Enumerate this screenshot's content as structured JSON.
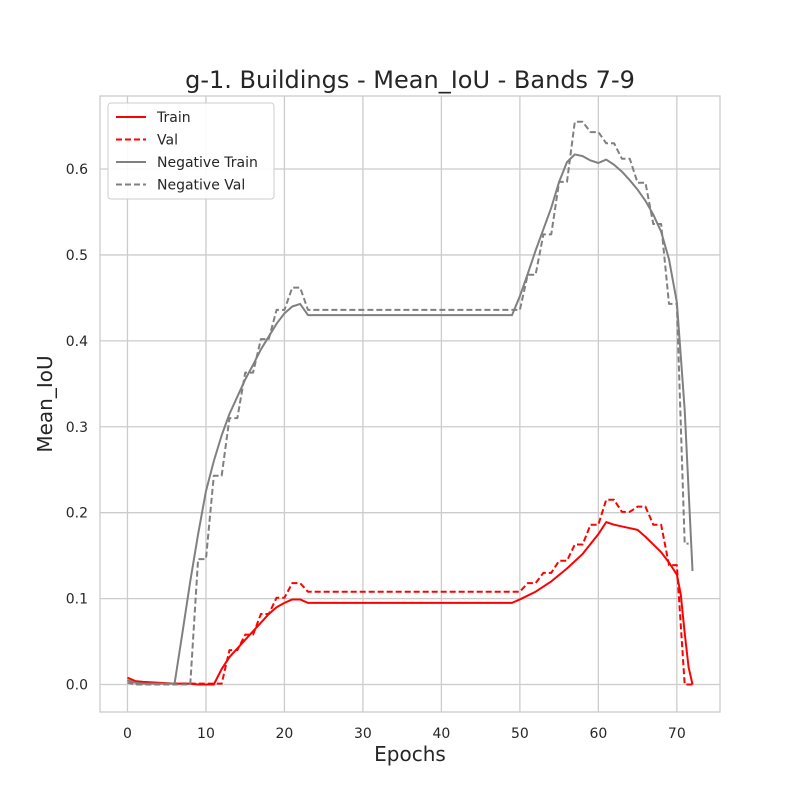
{
  "chart_data": {
    "type": "line",
    "title": "g-1. Buildings - Mean_IoU - Bands 7-9",
    "xlabel": "Epochs",
    "ylabel": "Mean_IoU",
    "xlim": [
      -3.5,
      75.5
    ],
    "ylim": [
      -0.032,
      0.685
    ],
    "xticks": [
      0,
      10,
      20,
      30,
      40,
      50,
      60,
      70
    ],
    "yticks": [
      0.0,
      0.1,
      0.2,
      0.3,
      0.4,
      0.5,
      0.6
    ],
    "ytick_labels": [
      "0.0",
      "0.1",
      "0.2",
      "0.3",
      "0.4",
      "0.5",
      "0.6"
    ],
    "grid": true,
    "legend_position": "top-left",
    "series": [
      {
        "name": "Train",
        "color": "#ff0000",
        "style": "solid",
        "points": [
          [
            0,
            0.008
          ],
          [
            1,
            0.004
          ],
          [
            2,
            0.003
          ],
          [
            4,
            0.002
          ],
          [
            6,
            0.001
          ],
          [
            8,
            0.001
          ],
          [
            9,
            0.0
          ],
          [
            10,
            0.0
          ],
          [
            11,
            0.0
          ],
          [
            12,
            0.018
          ],
          [
            13,
            0.032
          ],
          [
            14,
            0.042
          ],
          [
            15,
            0.052
          ],
          [
            16,
            0.062
          ],
          [
            17,
            0.072
          ],
          [
            18,
            0.082
          ],
          [
            19,
            0.09
          ],
          [
            20,
            0.095
          ],
          [
            21,
            0.099
          ],
          [
            22,
            0.099
          ],
          [
            23,
            0.095
          ],
          [
            30,
            0.095
          ],
          [
            40,
            0.095
          ],
          [
            49,
            0.095
          ],
          [
            50,
            0.099
          ],
          [
            52,
            0.108
          ],
          [
            54,
            0.12
          ],
          [
            56,
            0.135
          ],
          [
            58,
            0.152
          ],
          [
            60,
            0.175
          ],
          [
            61,
            0.189
          ],
          [
            62,
            0.186
          ],
          [
            63,
            0.184
          ],
          [
            65,
            0.18
          ],
          [
            66,
            0.172
          ],
          [
            67,
            0.163
          ],
          [
            68,
            0.154
          ],
          [
            69,
            0.142
          ],
          [
            70,
            0.128
          ],
          [
            70.5,
            0.105
          ],
          [
            71,
            0.06
          ],
          [
            71.5,
            0.02
          ],
          [
            72,
            0.0
          ]
        ]
      },
      {
        "name": "Val",
        "color": "#ff0000",
        "style": "dashed",
        "points": [
          [
            0,
            0.005
          ],
          [
            1,
            0.001
          ],
          [
            6,
            0.001
          ],
          [
            8,
            0.001
          ],
          [
            9,
            0.001
          ],
          [
            11,
            0.001
          ],
          [
            12,
            0.001
          ],
          [
            13,
            0.04
          ],
          [
            14,
            0.04
          ],
          [
            15,
            0.058
          ],
          [
            16,
            0.058
          ],
          [
            17,
            0.082
          ],
          [
            18,
            0.082
          ],
          [
            19,
            0.101
          ],
          [
            20,
            0.101
          ],
          [
            21,
            0.118
          ],
          [
            22,
            0.118
          ],
          [
            23,
            0.108
          ],
          [
            30,
            0.108
          ],
          [
            40,
            0.108
          ],
          [
            50,
            0.108
          ],
          [
            51,
            0.118
          ],
          [
            52,
            0.118
          ],
          [
            53,
            0.13
          ],
          [
            54,
            0.13
          ],
          [
            55,
            0.144
          ],
          [
            56,
            0.144
          ],
          [
            57,
            0.163
          ],
          [
            58,
            0.163
          ],
          [
            59,
            0.186
          ],
          [
            60,
            0.186
          ],
          [
            61,
            0.215
          ],
          [
            62,
            0.215
          ],
          [
            63,
            0.201
          ],
          [
            64,
            0.201
          ],
          [
            65,
            0.207
          ],
          [
            66,
            0.207
          ],
          [
            67,
            0.186
          ],
          [
            68,
            0.186
          ],
          [
            69,
            0.139
          ],
          [
            70,
            0.139
          ],
          [
            71,
            0.0
          ],
          [
            72,
            0.0
          ]
        ]
      },
      {
        "name": "Negative Train",
        "color": "#808080",
        "style": "solid",
        "points": [
          [
            0,
            0.005
          ],
          [
            1,
            0.002
          ],
          [
            2,
            0.001
          ],
          [
            4,
            0.001
          ],
          [
            6,
            0.001
          ],
          [
            7,
            0.06
          ],
          [
            8,
            0.12
          ],
          [
            9,
            0.175
          ],
          [
            10,
            0.225
          ],
          [
            11,
            0.26
          ],
          [
            12,
            0.29
          ],
          [
            13,
            0.315
          ],
          [
            14,
            0.335
          ],
          [
            15,
            0.355
          ],
          [
            16,
            0.372
          ],
          [
            17,
            0.39
          ],
          [
            18,
            0.405
          ],
          [
            19,
            0.42
          ],
          [
            20,
            0.432
          ],
          [
            21,
            0.44
          ],
          [
            22,
            0.443
          ],
          [
            23,
            0.43
          ],
          [
            30,
            0.43
          ],
          [
            40,
            0.43
          ],
          [
            49,
            0.43
          ],
          [
            50,
            0.452
          ],
          [
            51,
            0.478
          ],
          [
            52,
            0.505
          ],
          [
            53,
            0.53
          ],
          [
            54,
            0.555
          ],
          [
            55,
            0.585
          ],
          [
            56,
            0.608
          ],
          [
            57,
            0.617
          ],
          [
            58,
            0.615
          ],
          [
            59,
            0.61
          ],
          [
            60,
            0.607
          ],
          [
            61,
            0.611
          ],
          [
            62,
            0.605
          ],
          [
            63,
            0.597
          ],
          [
            64,
            0.587
          ],
          [
            65,
            0.576
          ],
          [
            66,
            0.563
          ],
          [
            67,
            0.547
          ],
          [
            68,
            0.527
          ],
          [
            69,
            0.495
          ],
          [
            70,
            0.445
          ],
          [
            71,
            0.32
          ],
          [
            72,
            0.132
          ]
        ]
      },
      {
        "name": "Negative Val",
        "color": "#808080",
        "style": "dashed",
        "points": [
          [
            0,
            0.002
          ],
          [
            1,
            0.0
          ],
          [
            6,
            0.0
          ],
          [
            8,
            0.0
          ],
          [
            9,
            0.146
          ],
          [
            10,
            0.146
          ],
          [
            11,
            0.243
          ],
          [
            12,
            0.243
          ],
          [
            13,
            0.31
          ],
          [
            14,
            0.31
          ],
          [
            15,
            0.363
          ],
          [
            16,
            0.363
          ],
          [
            17,
            0.402
          ],
          [
            18,
            0.402
          ],
          [
            19,
            0.436
          ],
          [
            20,
            0.436
          ],
          [
            21,
            0.462
          ],
          [
            22,
            0.462
          ],
          [
            23,
            0.436
          ],
          [
            30,
            0.436
          ],
          [
            40,
            0.436
          ],
          [
            50,
            0.436
          ],
          [
            51,
            0.477
          ],
          [
            52,
            0.477
          ],
          [
            53,
            0.524
          ],
          [
            54,
            0.524
          ],
          [
            55,
            0.585
          ],
          [
            56,
            0.585
          ],
          [
            57,
            0.655
          ],
          [
            58,
            0.655
          ],
          [
            59,
            0.643
          ],
          [
            60,
            0.643
          ],
          [
            61,
            0.63
          ],
          [
            62,
            0.63
          ],
          [
            63,
            0.612
          ],
          [
            64,
            0.612
          ],
          [
            65,
            0.584
          ],
          [
            66,
            0.584
          ],
          [
            67,
            0.536
          ],
          [
            68,
            0.536
          ],
          [
            69,
            0.443
          ],
          [
            70,
            0.443
          ],
          [
            71,
            0.164
          ],
          [
            71.5,
            0.164
          ]
        ]
      }
    ]
  }
}
